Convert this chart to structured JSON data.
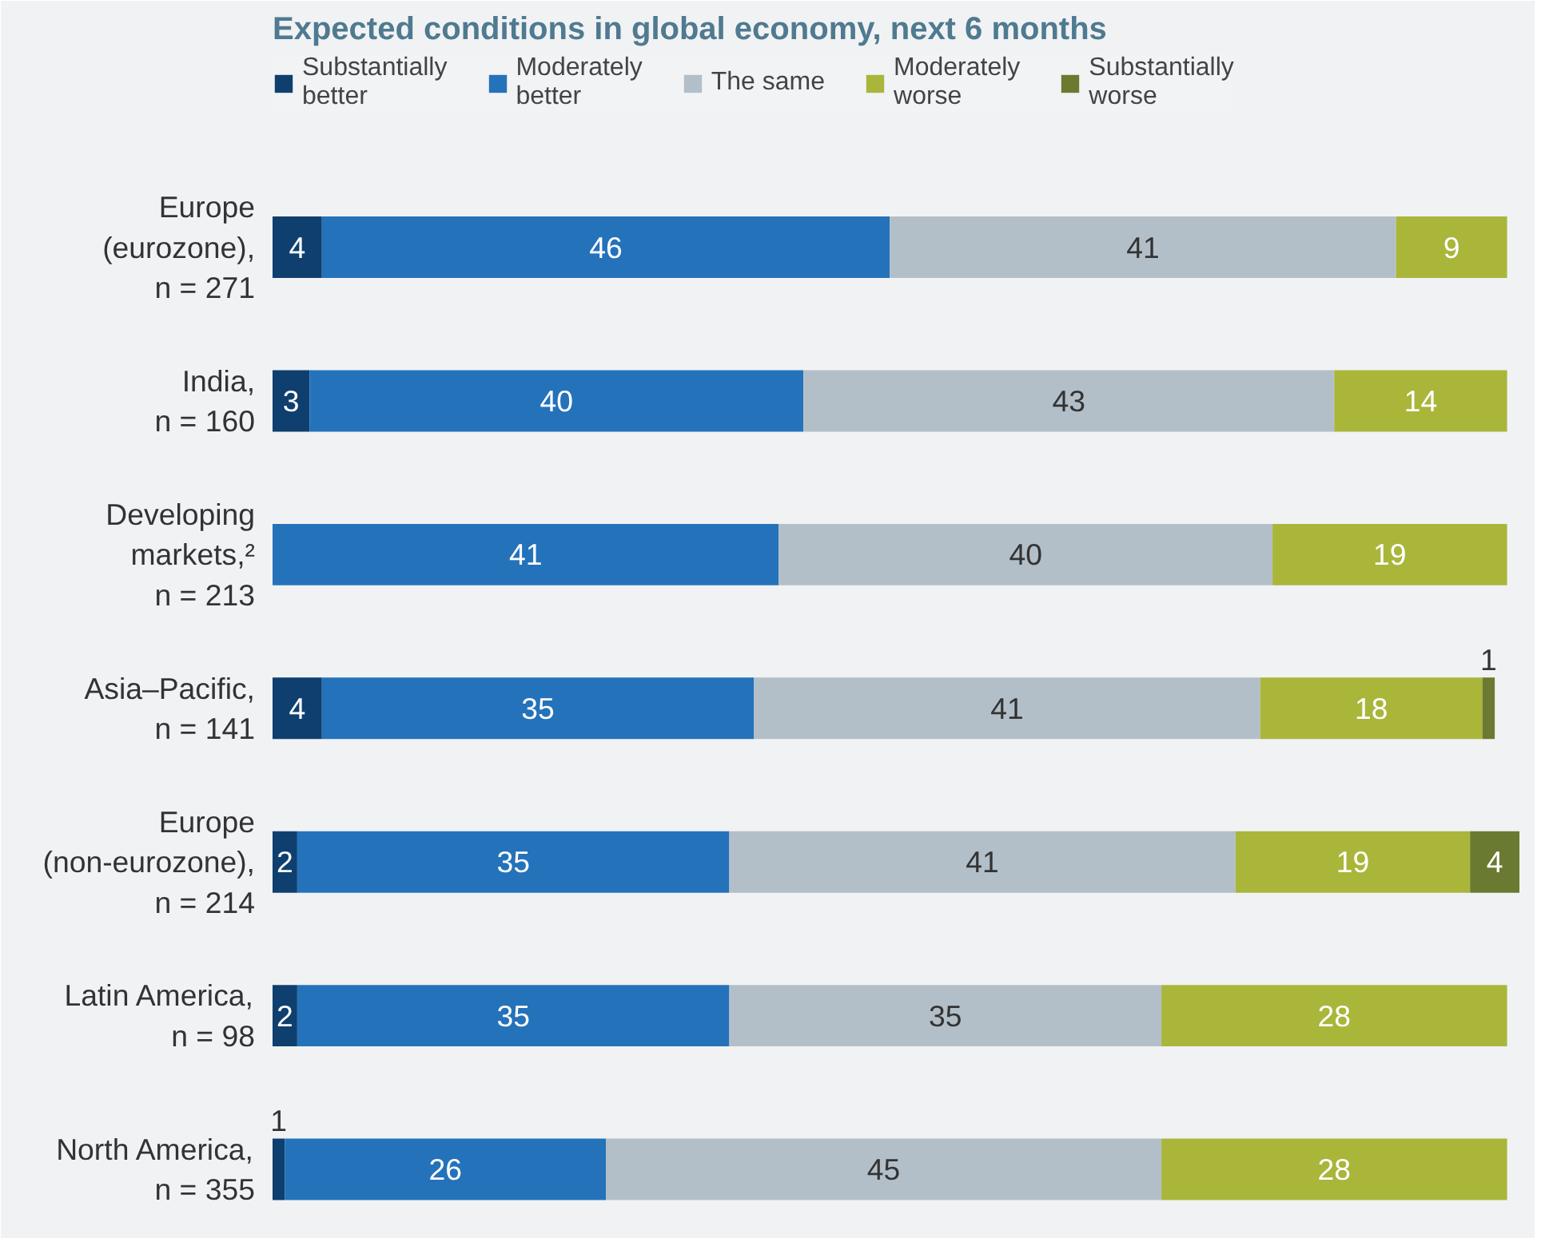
{
  "chart_data": {
    "type": "bar",
    "orientation": "horizontal",
    "stacked": true,
    "title": "Expected conditions in global economy, next 6 months",
    "categories": [
      "Europe\n(eurozone),\nn = 271",
      "India,\nn = 160",
      "Developing\nmarkets,²\nn = 213",
      "Asia–Pacific,\nn = 141",
      "Europe\n(non-eurozone),\nn = 214",
      "Latin America,\nn = 98",
      "North America,\nn = 355"
    ],
    "series": [
      {
        "name": "Substantially\nbetter",
        "color": "#0f3f6e",
        "values": [
          4,
          3,
          null,
          4,
          2,
          2,
          1
        ]
      },
      {
        "name": "Moderately\nbetter",
        "color": "#2472ba",
        "values": [
          46,
          40,
          41,
          35,
          35,
          35,
          26
        ]
      },
      {
        "name": "The same",
        "color": "#b3bfc8",
        "values": [
          41,
          43,
          40,
          41,
          41,
          35,
          45
        ]
      },
      {
        "name": "Moderately\nworse",
        "color": "#a9b63a",
        "values": [
          9,
          14,
          19,
          18,
          19,
          28,
          28
        ]
      },
      {
        "name": "Substantially\nworse",
        "color": "#6a7a30",
        "values": [
          null,
          null,
          null,
          1,
          4,
          null,
          null
        ]
      }
    ],
    "data_labels": true,
    "legend": "top",
    "grid": false,
    "tick_labels": "y"
  }
}
